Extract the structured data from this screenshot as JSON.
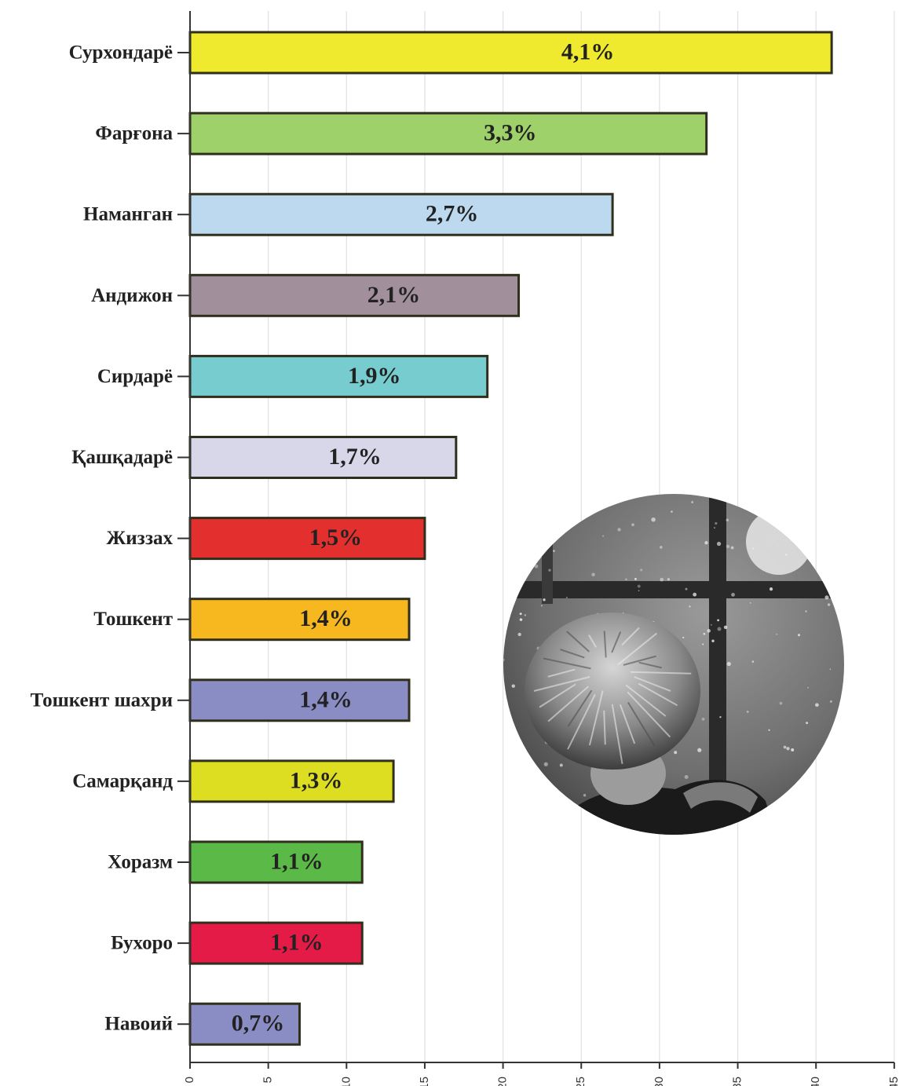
{
  "chart_data": {
    "type": "bar",
    "orientation": "horizontal",
    "categories": [
      "Сурхондарё",
      "Фарғона",
      "Наманган",
      "Андижон",
      "Сирдарё",
      "Қашқадарё",
      "Жиззах",
      "Тошкент",
      "Тошкент шахри",
      "Самарқанд",
      "Хоразм",
      "Бухоро",
      "Навоий"
    ],
    "values": [
      41,
      33,
      27,
      21,
      19,
      17,
      15,
      14,
      14,
      13,
      11,
      11,
      7
    ],
    "data_labels": [
      "4,1%",
      "3,3%",
      "2,7%",
      "2,1%",
      "1,9%",
      "1,7%",
      "1,5%",
      "1,4%",
      "1,4%",
      "1,3%",
      "1,1%",
      "1,1%",
      "0,7%"
    ],
    "colors": [
      "#f0ea2e",
      "#9fd16b",
      "#bcd9ef",
      "#a18f9c",
      "#76ccce",
      "#d8d7ea",
      "#e3302f",
      "#f6b71f",
      "#8a8cc4",
      "#dddd22",
      "#5bba47",
      "#e51b47",
      "#8a8cc4"
    ],
    "xlim": [
      0,
      45
    ],
    "x_ticks": [
      "0",
      "5",
      "10",
      "15",
      "20",
      "25",
      "30",
      "35",
      "40",
      "45"
    ],
    "grid": true,
    "title": "",
    "xlabel": "",
    "ylabel": ""
  },
  "decoration": {
    "photo_icon": "boy-at-window-photo"
  }
}
